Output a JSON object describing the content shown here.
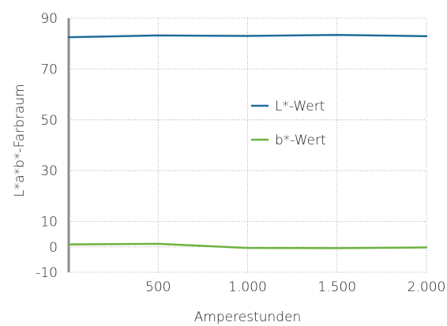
{
  "chart_data": {
    "type": "line",
    "title": "",
    "xlabel": "Amperestunden",
    "ylabel": "L*a*b*-Farbraum",
    "x": [
      0,
      500,
      1000,
      1500,
      2000
    ],
    "x_tick_values": [
      500,
      1000,
      1500,
      2000
    ],
    "x_tick_labels": [
      "500",
      "1.000",
      "1.500",
      "2.000"
    ],
    "xlim": [
      0,
      2000
    ],
    "y_tick_values": [
      90,
      70,
      50,
      30,
      10,
      0,
      -10
    ],
    "y_tick_labels": [
      "90",
      "70",
      "50",
      "30",
      "10",
      "0",
      "-10"
    ],
    "ylim": [
      -10,
      90
    ],
    "grid": true,
    "legend_position": "center-right",
    "series": [
      {
        "name": "L*-Wert",
        "color": "#1f6d9a",
        "values": [
          82.5,
          83.2,
          83.0,
          83.4,
          82.9
        ]
      },
      {
        "name": "b*-Wert",
        "color": "#6db33f",
        "values": [
          1.0,
          1.2,
          -0.4,
          -0.5,
          -0.2
        ]
      }
    ]
  }
}
